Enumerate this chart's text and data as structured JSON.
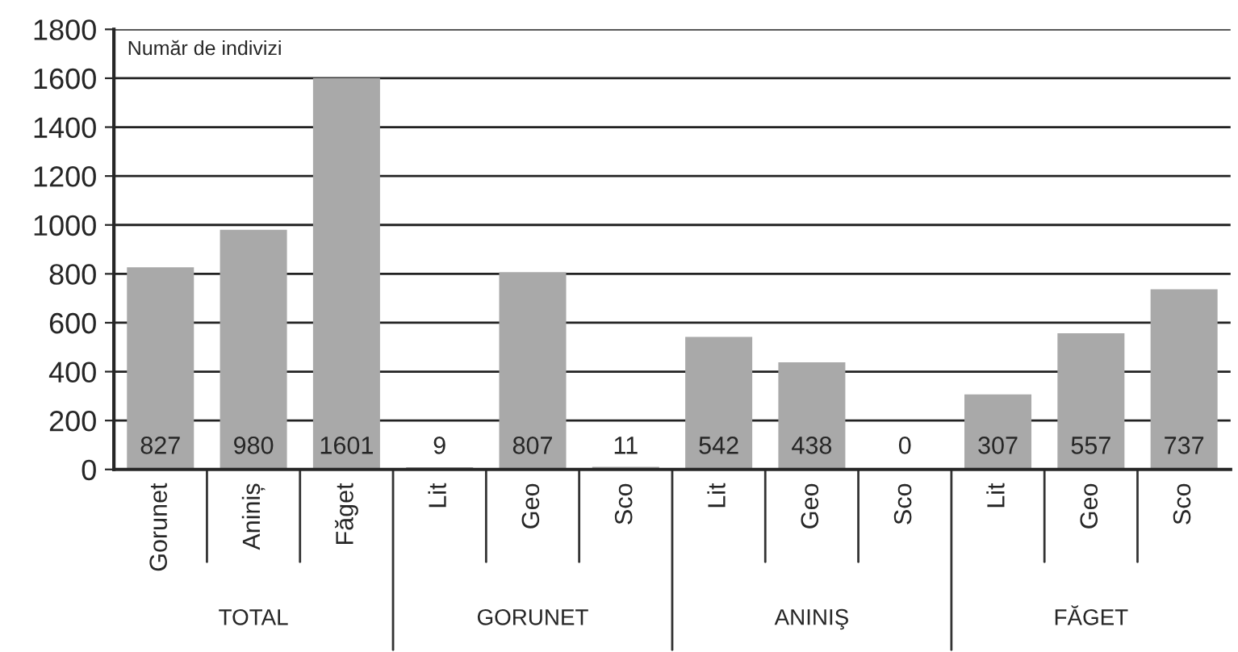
{
  "chart_data": {
    "type": "bar",
    "ylabel": "Număr de indivizi",
    "categories": [
      "Gorunet",
      "Aniniș",
      "Făget",
      "Lit",
      "Geo",
      "Sco",
      "Lit",
      "Geo",
      "Sco",
      "Lit",
      "Geo",
      "Sco"
    ],
    "values": [
      827,
      980,
      1601,
      9,
      807,
      11,
      542,
      438,
      0,
      307,
      557,
      737
    ],
    "color": "#a9a9a9",
    "data_labels": true,
    "annotations": [
      "TOTAL",
      "GORUNET",
      "ANINIŞ",
      "FĂGET"
    ],
    "ylim": [
      0,
      1800
    ],
    "yticks": [
      0,
      200,
      400,
      600,
      800,
      1000,
      1200,
      1400,
      1600,
      1800
    ],
    "grid": "y",
    "legend": false
  }
}
